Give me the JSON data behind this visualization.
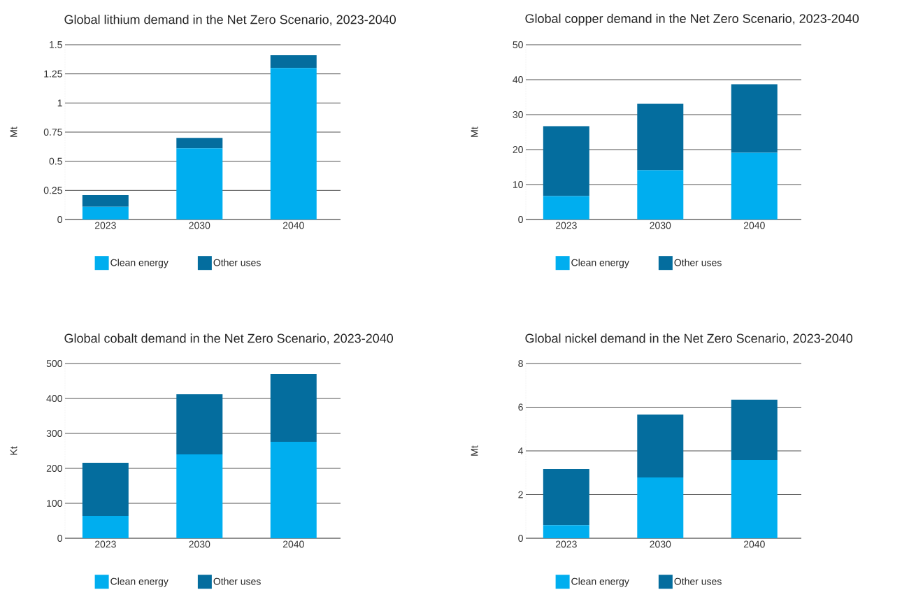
{
  "chart_data": [
    {
      "type": "bar",
      "stacked": true,
      "title": "Global lithium demand in the Net Zero Scenario, 2023-2040",
      "ylabel": "Mt",
      "categories": [
        "2023",
        "2030",
        "2040"
      ],
      "series": [
        {
          "name": "Clean energy",
          "color": "#00aeef",
          "values": [
            0.11,
            0.61,
            1.3
          ]
        },
        {
          "name": "Other uses",
          "color": "#046d9e",
          "values": [
            0.1,
            0.09,
            0.11
          ]
        }
      ],
      "ylim": [
        0,
        1.5
      ],
      "yticks": [
        0,
        0.25,
        0.5,
        0.75,
        1,
        1.25,
        1.5
      ],
      "grid": "y",
      "legend": "bottom"
    },
    {
      "type": "bar",
      "stacked": true,
      "title": "Global copper demand in the Net Zero Scenario, 2023-2040",
      "ylabel": "Mt",
      "categories": [
        "2023",
        "2030",
        "2040"
      ],
      "series": [
        {
          "name": "Clean energy",
          "color": "#00aeef",
          "values": [
            6.7,
            14.1,
            19.1
          ]
        },
        {
          "name": "Other uses",
          "color": "#046d9e",
          "values": [
            20,
            19,
            19.6
          ]
        }
      ],
      "ylim": [
        0,
        50
      ],
      "yticks": [
        0,
        10,
        20,
        30,
        40,
        50
      ],
      "grid": "y",
      "legend": "bottom"
    },
    {
      "type": "bar",
      "stacked": true,
      "title": "Global cobalt demand in the Net Zero Scenario, 2023-2040",
      "ylabel": "Kt",
      "categories": [
        "2023",
        "2030",
        "2040"
      ],
      "series": [
        {
          "name": "Clean energy",
          "color": "#00aeef",
          "values": [
            64,
            240,
            276
          ]
        },
        {
          "name": "Other uses",
          "color": "#046d9e",
          "values": [
            152,
            172,
            194
          ]
        }
      ],
      "ylim": [
        0,
        500
      ],
      "yticks": [
        0,
        100,
        200,
        300,
        400,
        500
      ],
      "grid": "y",
      "legend": "bottom"
    },
    {
      "type": "bar",
      "stacked": true,
      "title": "Global nickel demand in the Net Zero Scenario, 2023-2040",
      "ylabel": "Mt",
      "categories": [
        "2023",
        "2030",
        "2040"
      ],
      "series": [
        {
          "name": "Clean energy",
          "color": "#00aeef",
          "values": [
            0.6,
            2.78,
            3.58
          ]
        },
        {
          "name": "Other uses",
          "color": "#046d9e",
          "values": [
            2.57,
            2.88,
            2.76
          ]
        }
      ],
      "ylim": [
        0,
        8
      ],
      "yticks": [
        0,
        2,
        4,
        6,
        8
      ],
      "grid": "y",
      "legend": "bottom"
    }
  ]
}
